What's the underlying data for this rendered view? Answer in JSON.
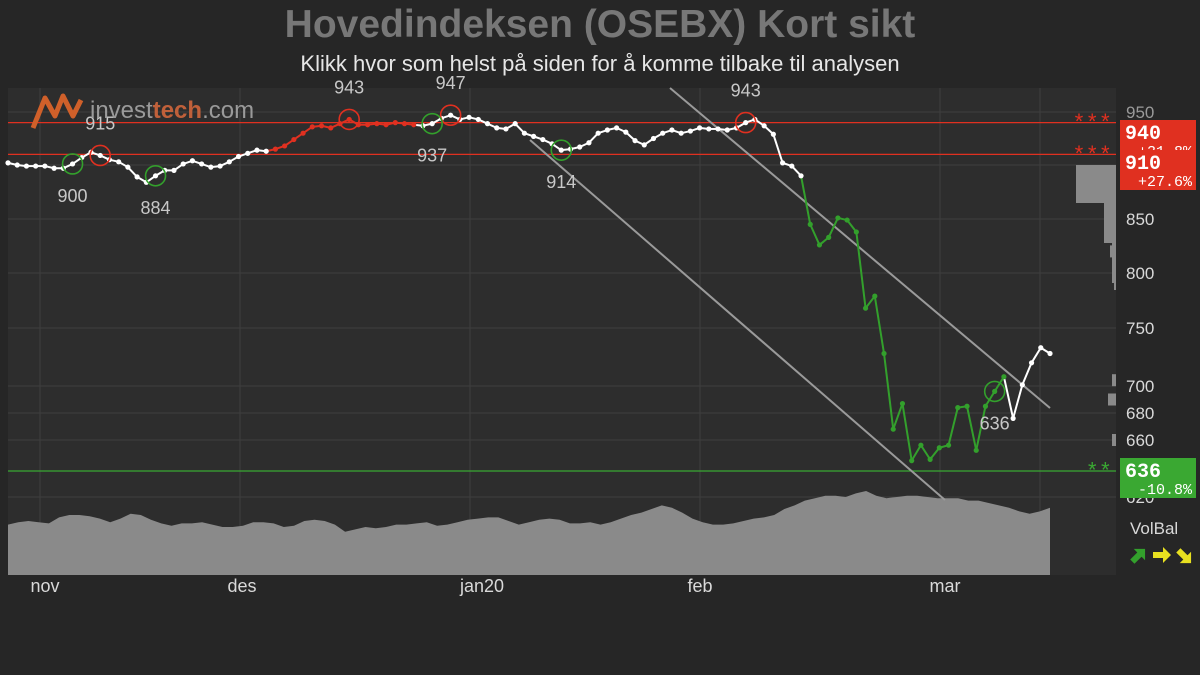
{
  "header": {
    "title": "Hovedindeksen (OSEBX) Kort sikt",
    "subtitle": "Klikk hvor som helst på siden for å komme tilbake til analysen"
  },
  "logo": {
    "brand_a": "invest",
    "brand_b": "tech",
    "brand_c": ".com"
  },
  "colors": {
    "background": "#262626",
    "plot_background": "#2d2d2d",
    "grid": "#3e3e3e",
    "up_trend": "#e03020",
    "down_trend": "#33a02c",
    "neutral": "#ffffff",
    "volume": "#8a8a8a",
    "channel": "#9a9a9a"
  },
  "volbal": {
    "label": "VolBal",
    "arrows": [
      "up-green-arrow",
      "right-yellow-arrow",
      "down-yellow-arrow"
    ]
  },
  "chart_data": {
    "type": "line",
    "x_ticks": [
      "nov",
      "des",
      "jan20",
      "feb",
      "mar"
    ],
    "y_ticks": [
      "850",
      "800",
      "750",
      "700",
      "680",
      "660",
      "620"
    ],
    "y_tick_top_partial": "950",
    "ylim": [
      620,
      960
    ],
    "series": [
      {
        "values": [
          902,
          900,
          899,
          899,
          899,
          897,
          897,
          901,
          907,
          912,
          909,
          905,
          903,
          898,
          889,
          884,
          890,
          895,
          895,
          901,
          904,
          901,
          898,
          899,
          903,
          908,
          911,
          914,
          913,
          915,
          918,
          924,
          930,
          936,
          937,
          935,
          939,
          943,
          938,
          938,
          939,
          938,
          940,
          939,
          938,
          937,
          939,
          944,
          947,
          943,
          945,
          943,
          939,
          935,
          934,
          939,
          930,
          927,
          924,
          920,
          914,
          915,
          917,
          921,
          930,
          933,
          935,
          931,
          923,
          919,
          925,
          930,
          933,
          930,
          932,
          935,
          934,
          934,
          933,
          935,
          940,
          943,
          937,
          929,
          902,
          899,
          890,
          845,
          826,
          833,
          851,
          849,
          838,
          768,
          779,
          728,
          668,
          687,
          644,
          656,
          645,
          654,
          656,
          684,
          685,
          652,
          685,
          696,
          708,
          676,
          701,
          720,
          733,
          728
        ],
        "segment_colors": "stored-per-point",
        "point_colors": [
          "w",
          "w",
          "w",
          "w",
          "w",
          "w",
          "w",
          "w",
          "w",
          "w",
          "w",
          "w",
          "w",
          "w",
          "w",
          "w",
          "w",
          "w",
          "w",
          "w",
          "w",
          "w",
          "w",
          "w",
          "w",
          "w",
          "w",
          "w",
          "w",
          "r",
          "r",
          "r",
          "r",
          "r",
          "r",
          "r",
          "r",
          "r",
          "r",
          "r",
          "r",
          "r",
          "r",
          "r",
          "r",
          "w",
          "w",
          "w",
          "w",
          "w",
          "w",
          "w",
          "w",
          "w",
          "w",
          "w",
          "w",
          "w",
          "w",
          "w",
          "w",
          "w",
          "w",
          "w",
          "w",
          "w",
          "w",
          "w",
          "w",
          "w",
          "w",
          "w",
          "w",
          "w",
          "w",
          "w",
          "w",
          "w",
          "w",
          "w",
          "w",
          "w",
          "w",
          "w",
          "w",
          "w",
          "w",
          "g",
          "g",
          "g",
          "g",
          "g",
          "g",
          "g",
          "g",
          "g",
          "g",
          "g",
          "g",
          "g",
          "g",
          "g",
          "g",
          "g",
          "g",
          "g",
          "g",
          "g",
          "g",
          "w",
          "w",
          "w",
          "w",
          "w"
        ]
      }
    ],
    "annotations": [
      {
        "label": "915",
        "value": 915,
        "kind": "top"
      },
      {
        "label": "900",
        "value": 900,
        "kind": "bottom"
      },
      {
        "label": "884",
        "value": 884,
        "kind": "bottom"
      },
      {
        "label": "943",
        "value": 943,
        "kind": "top"
      },
      {
        "label": "947",
        "value": 947,
        "kind": "top"
      },
      {
        "label": "937",
        "value": 937,
        "kind": "bottom"
      },
      {
        "label": "914",
        "value": 914,
        "kind": "bottom"
      },
      {
        "label": "943",
        "value": 943,
        "kind": "top"
      },
      {
        "label": "636",
        "value": 636,
        "kind": "bottom"
      }
    ],
    "levels": [
      {
        "value": 940,
        "label": "940",
        "change": "+31.8%",
        "stars": "***",
        "color": "#e03020"
      },
      {
        "value": 910,
        "label": "910",
        "change": "+27.6%",
        "stars": "***",
        "color": "#e03020"
      },
      {
        "value": 636,
        "label": "636",
        "change": "-10.8%",
        "stars": "**",
        "color": "#3aa832"
      }
    ],
    "volume": [
      0.42,
      0.44,
      0.45,
      0.44,
      0.43,
      0.48,
      0.5,
      0.5,
      0.49,
      0.47,
      0.44,
      0.47,
      0.51,
      0.5,
      0.46,
      0.43,
      0.41,
      0.43,
      0.43,
      0.44,
      0.42,
      0.4,
      0.4,
      0.41,
      0.44,
      0.44,
      0.43,
      0.4,
      0.41,
      0.45,
      0.46,
      0.45,
      0.42,
      0.36,
      0.38,
      0.4,
      0.39,
      0.4,
      0.42,
      0.42,
      0.43,
      0.44,
      0.41,
      0.42,
      0.44,
      0.46,
      0.47,
      0.48,
      0.48,
      0.45,
      0.42,
      0.44,
      0.46,
      0.47,
      0.46,
      0.43,
      0.43,
      0.44,
      0.42,
      0.44,
      0.47,
      0.5,
      0.52,
      0.55,
      0.58,
      0.56,
      0.52,
      0.47,
      0.44,
      0.42,
      0.42,
      0.43,
      0.45,
      0.47,
      0.48,
      0.5,
      0.55,
      0.58,
      0.62,
      0.64,
      0.66,
      0.66,
      0.65,
      0.68,
      0.7,
      0.66,
      0.64,
      0.65,
      0.66,
      0.66,
      0.65,
      0.64,
      0.64,
      0.64,
      0.62,
      0.62,
      0.6,
      0.58,
      0.56,
      0.53,
      0.51,
      0.53,
      0.56
    ],
    "grid": true
  }
}
